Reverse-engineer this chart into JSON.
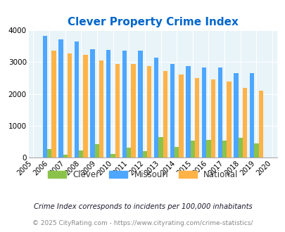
{
  "title": "Clever Property Crime Index",
  "years": [
    2005,
    2006,
    2007,
    2008,
    2009,
    2010,
    2011,
    2012,
    2013,
    2014,
    2015,
    2016,
    2017,
    2018,
    2019,
    2020
  ],
  "clever": [
    0,
    270,
    100,
    230,
    420,
    110,
    310,
    200,
    650,
    340,
    530,
    560,
    530,
    630,
    460,
    0
  ],
  "missouri": [
    0,
    3820,
    3720,
    3650,
    3400,
    3370,
    3360,
    3360,
    3130,
    2930,
    2870,
    2820,
    2840,
    2650,
    2650,
    0
  ],
  "national": [
    0,
    3360,
    3280,
    3220,
    3040,
    2950,
    2940,
    2870,
    2720,
    2600,
    2500,
    2450,
    2380,
    2180,
    2110,
    0
  ],
  "clever_color": "#8bc34a",
  "missouri_color": "#4da6ff",
  "national_color": "#ffb347",
  "bg_color": "#e8f4f8",
  "ylim": [
    0,
    4000
  ],
  "ylabel_vals": [
    0,
    1000,
    2000,
    3000,
    4000
  ],
  "footnote1": "Crime Index corresponds to incidents per 100,000 inhabitants",
  "footnote2": "© 2025 CityRating.com - https://www.cityrating.com/crime-statistics/",
  "title_color": "#0066cc",
  "footnote1_color": "#1a1a2e",
  "footnote2_color": "#888888",
  "bar_width": 0.28
}
